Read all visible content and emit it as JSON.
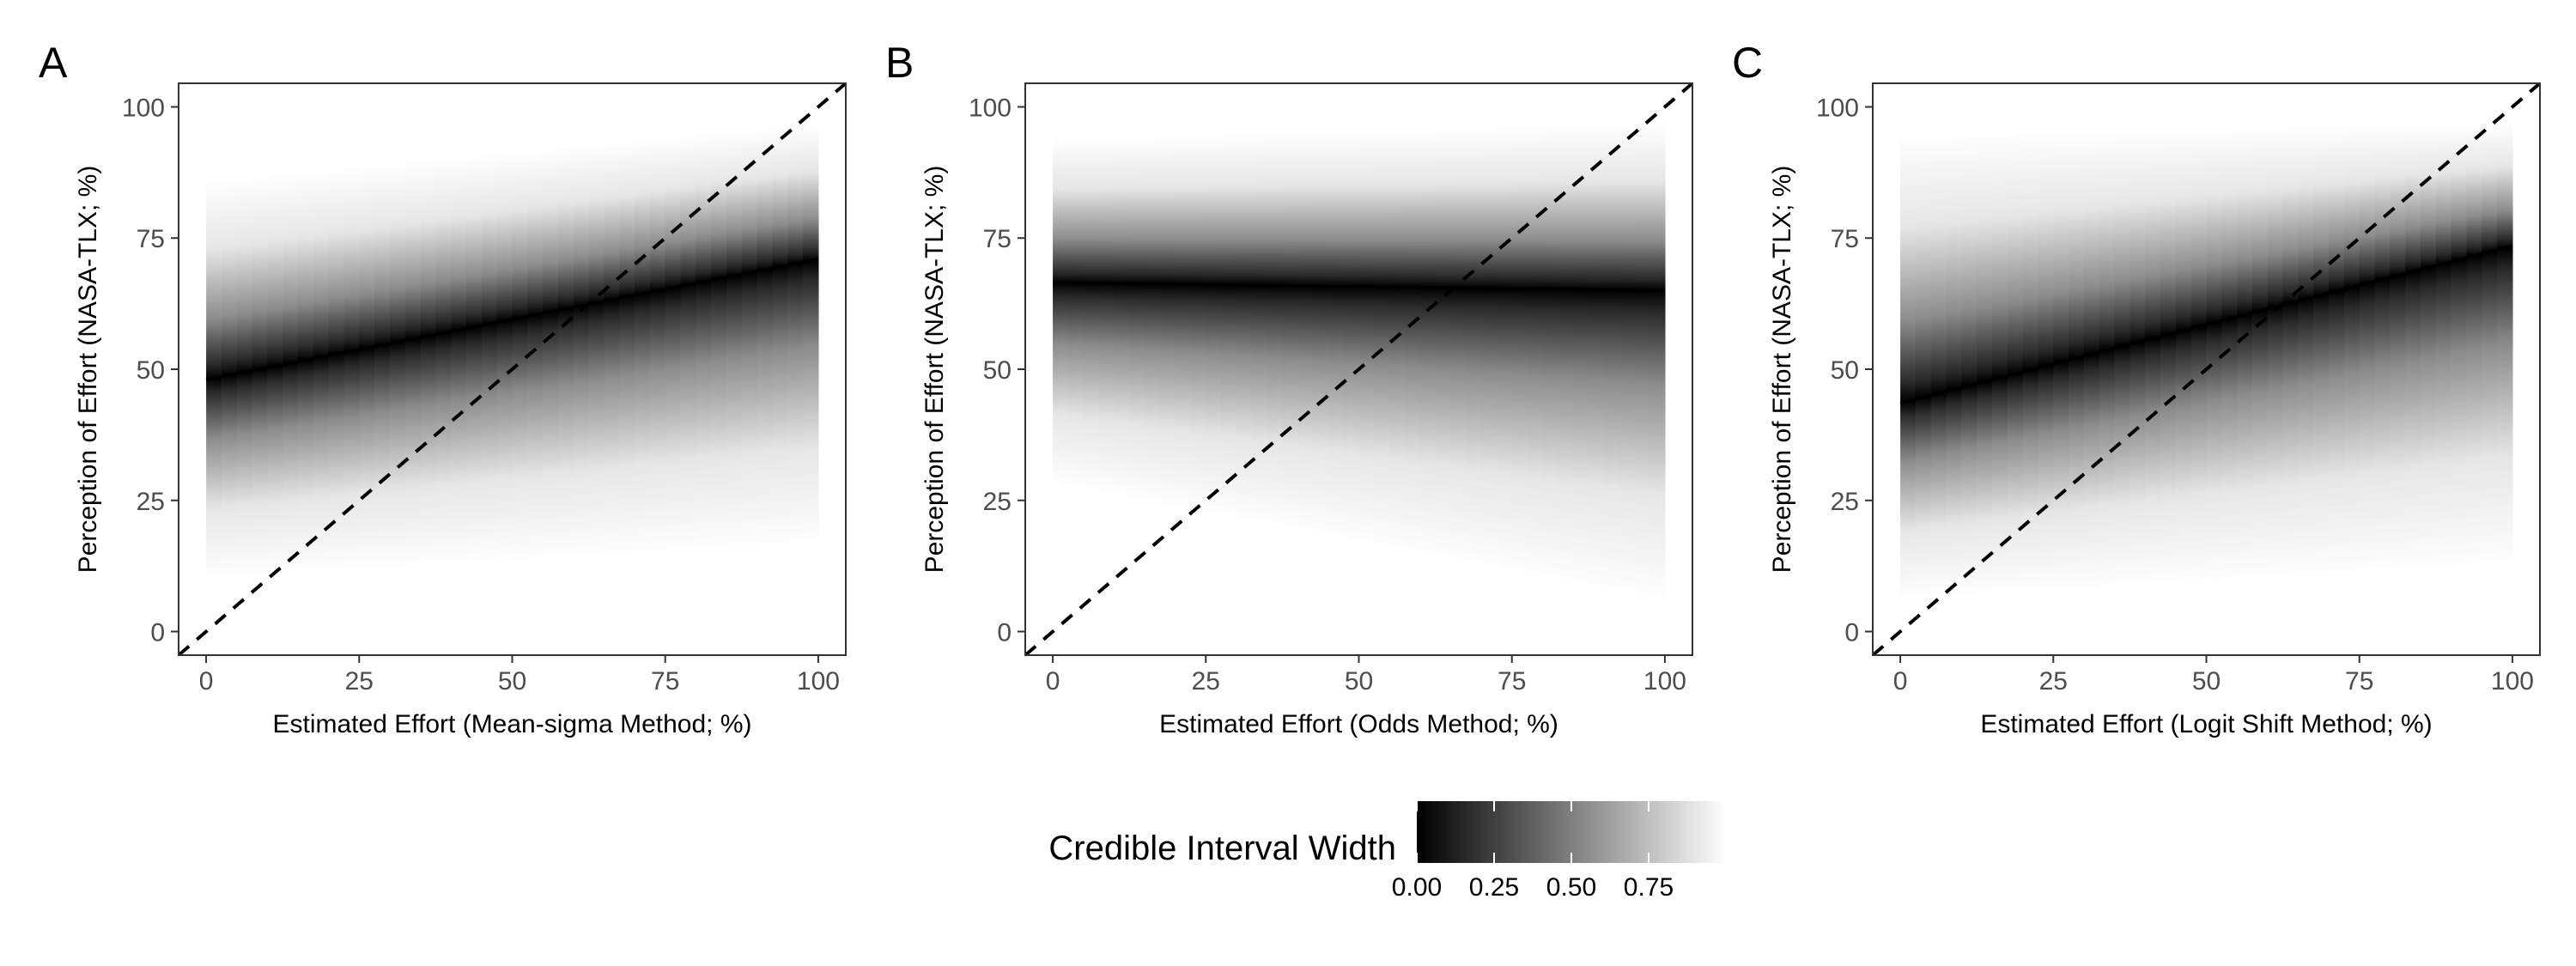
{
  "chart_data": [
    {
      "type": "area",
      "panel": "A",
      "xlabel": "Estimated Effort (Mean-sigma Method; %)",
      "ylabel": "Perception of Effort (NASA-TLX; %)",
      "xlim": [
        -4.5,
        104.5
      ],
      "ylim": [
        -4.5,
        104.5
      ],
      "xticks": [
        0,
        25,
        50,
        75,
        100
      ],
      "yticks": [
        0,
        25,
        50,
        75,
        100
      ],
      "grid": false,
      "series": [
        {
          "style": "solid",
          "x": [
            0,
            100
          ],
          "y": [
            48,
            71
          ]
        },
        {
          "style": "dashed",
          "x": [
            -4.5,
            104.5
          ],
          "y": [
            -4.5,
            104.5
          ]
        }
      ],
      "band": {
        "x": [
          0,
          100
        ],
        "y_top": [
          86,
          97
        ],
        "y_bottom": [
          10,
          16
        ],
        "center": [
          48,
          71
        ]
      }
    },
    {
      "type": "area",
      "panel": "B",
      "xlabel": "Estimated Effort (Odds Method; %)",
      "ylabel": "Perception of Effort (NASA-TLX; %)",
      "xlim": [
        -4.5,
        104.5
      ],
      "ylim": [
        -4.5,
        104.5
      ],
      "xticks": [
        0,
        25,
        50,
        75,
        100
      ],
      "yticks": [
        0,
        25,
        50,
        75,
        100
      ],
      "grid": false,
      "series": [
        {
          "style": "solid",
          "x": [
            0,
            100
          ],
          "y": [
            66.5,
            65
          ]
        },
        {
          "style": "dashed",
          "x": [
            -4.5,
            104.5
          ],
          "y": [
            -4.5,
            104.5
          ]
        }
      ],
      "band": {
        "x": [
          0,
          100
        ],
        "y_top": [
          94,
          97
        ],
        "y_bottom": [
          28,
          5
        ],
        "center": [
          66.5,
          65
        ]
      }
    },
    {
      "type": "area",
      "panel": "C",
      "xlabel": "Estimated Effort (Logit Shift Method; %)",
      "ylabel": "Perception of Effort (NASA-TLX; %)",
      "xlim": [
        -4.5,
        104.5
      ],
      "ylim": [
        -4.5,
        104.5
      ],
      "xticks": [
        0,
        25,
        50,
        75,
        100
      ],
      "yticks": [
        0,
        25,
        50,
        75,
        100
      ],
      "grid": false,
      "series": [
        {
          "style": "solid",
          "x": [
            0,
            100
          ],
          "y": [
            43.5,
            73.5
          ]
        },
        {
          "style": "dashed",
          "x": [
            -4.5,
            104.5
          ],
          "y": [
            -4.5,
            104.5
          ]
        }
      ],
      "band": {
        "x": [
          0,
          100
        ],
        "y_top": [
          95,
          97
        ],
        "y_bottom": [
          6,
          12
        ],
        "center": [
          43.5,
          73.5
        ]
      }
    }
  ],
  "legend": {
    "title": "Credible Interval Width",
    "position": "bottom",
    "range": [
      0,
      1
    ],
    "ticks": [
      0,
      0.25,
      0.5,
      0.75
    ],
    "tick_labels": [
      "0.00",
      "0.25",
      "0.50",
      "0.75"
    ],
    "colors": [
      "#000000",
      "#ffffff"
    ]
  }
}
